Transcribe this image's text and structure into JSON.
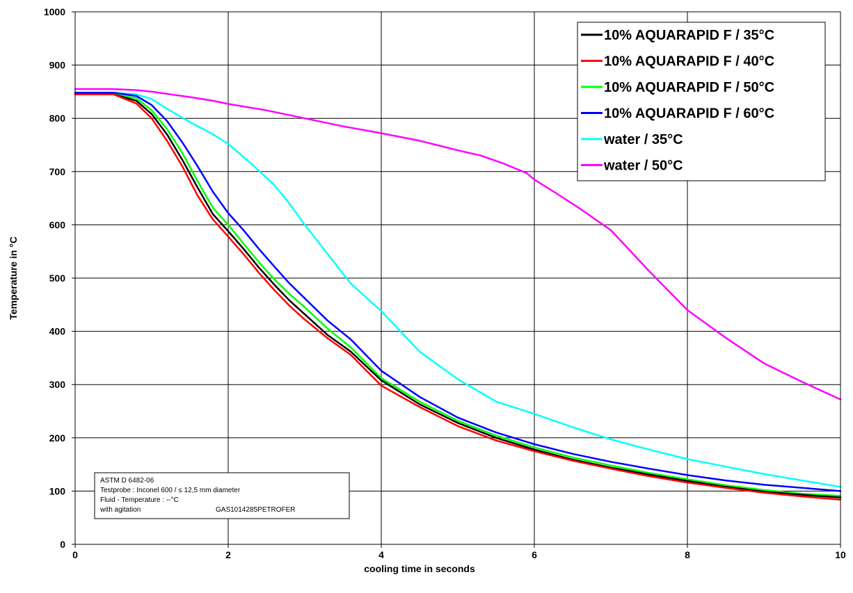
{
  "chart_data": {
    "type": "line",
    "xlabel": "cooling time in seconds",
    "ylabel": "Temperature in °C",
    "xlim": [
      0,
      10
    ],
    "ylim": [
      0,
      1000
    ],
    "xticks": [
      0,
      2,
      4,
      6,
      8,
      10
    ],
    "yticks": [
      0,
      100,
      200,
      300,
      400,
      500,
      600,
      700,
      800,
      900,
      1000
    ],
    "grid": true,
    "legend_position": "top-right",
    "series": [
      {
        "name": "10% AQUARAPID F / 35°C",
        "color": "#000000",
        "x": [
          0,
          0.5,
          0.8,
          1.0,
          1.2,
          1.4,
          1.6,
          1.8,
          2.0,
          2.2,
          2.4,
          2.6,
          2.8,
          3.0,
          3.3,
          3.6,
          4.0,
          4.5,
          5.0,
          5.5,
          6.0,
          6.5,
          7.0,
          7.5,
          8.0,
          8.5,
          9.0,
          9.5,
          10.0
        ],
        "y": [
          845,
          845,
          833,
          808,
          770,
          722,
          670,
          620,
          588,
          555,
          520,
          488,
          458,
          432,
          393,
          362,
          308,
          263,
          228,
          200,
          178,
          159,
          144,
          131,
          119,
          108,
          99,
          93,
          88
        ]
      },
      {
        "name": "10% AQUARAPID F / 40°C",
        "color": "#ff0000",
        "x": [
          0,
          0.5,
          0.8,
          1.0,
          1.2,
          1.4,
          1.6,
          1.8,
          2.0,
          2.2,
          2.4,
          2.6,
          2.8,
          3.0,
          3.3,
          3.6,
          4.0,
          4.5,
          5.0,
          5.5,
          6.0,
          6.5,
          7.0,
          7.5,
          8.0,
          8.5,
          9.0,
          9.5,
          10.0
        ],
        "y": [
          845,
          845,
          828,
          800,
          758,
          710,
          655,
          610,
          578,
          545,
          510,
          478,
          448,
          422,
          387,
          356,
          298,
          258,
          222,
          195,
          175,
          157,
          142,
          128,
          116,
          106,
          97,
          90,
          84
        ]
      },
      {
        "name": "10% AQUARAPID F / 50°C",
        "color": "#00ff00",
        "x": [
          0,
          0.5,
          0.8,
          1.0,
          1.2,
          1.4,
          1.6,
          1.8,
          2.0,
          2.2,
          2.4,
          2.6,
          2.8,
          3.0,
          3.3,
          3.6,
          4.0,
          4.5,
          5.0,
          5.5,
          6.0,
          6.5,
          7.0,
          7.5,
          8.0,
          8.5,
          9.0,
          9.5,
          10.0
        ],
        "y": [
          845,
          845,
          838,
          815,
          780,
          735,
          682,
          632,
          600,
          565,
          530,
          498,
          470,
          445,
          405,
          370,
          312,
          268,
          232,
          204,
          182,
          163,
          148,
          134,
          122,
          111,
          102,
          95,
          91
        ]
      },
      {
        "name": "10% AQUARAPID F / 60°C",
        "color": "#0000ff",
        "x": [
          0,
          0.5,
          0.8,
          1.0,
          1.2,
          1.4,
          1.6,
          1.8,
          2.0,
          2.2,
          2.4,
          2.6,
          2.8,
          3.0,
          3.3,
          3.6,
          4.0,
          4.5,
          5.0,
          5.5,
          6.0,
          6.5,
          7.0,
          7.5,
          8.0,
          8.5,
          9.0,
          9.5,
          10.0
        ],
        "y": [
          848,
          848,
          842,
          825,
          795,
          755,
          710,
          662,
          622,
          590,
          555,
          522,
          490,
          462,
          420,
          385,
          326,
          277,
          238,
          210,
          188,
          170,
          155,
          142,
          130,
          120,
          112,
          106,
          100
        ]
      },
      {
        "name": "water / 35°C",
        "color": "#00ffff",
        "x": [
          0,
          0.5,
          0.8,
          1.0,
          1.2,
          1.5,
          1.8,
          2.0,
          2.3,
          2.6,
          2.8,
          3.0,
          3.3,
          3.6,
          4.0,
          4.5,
          5.0,
          5.5,
          6.0,
          6.5,
          7.0,
          7.5,
          8.0,
          8.5,
          9.0,
          9.5,
          10.0
        ],
        "y": [
          848,
          848,
          845,
          836,
          818,
          793,
          770,
          752,
          715,
          675,
          640,
          600,
          545,
          490,
          438,
          362,
          310,
          268,
          245,
          220,
          197,
          178,
          160,
          146,
          132,
          120,
          108
        ]
      },
      {
        "name": "water / 50°C",
        "color": "#ff00ff",
        "x": [
          0,
          0.5,
          0.8,
          1.0,
          1.2,
          1.5,
          1.8,
          2.0,
          2.5,
          3.0,
          3.5,
          4.0,
          4.5,
          5.0,
          5.3,
          5.6,
          5.9,
          6.0,
          6.3,
          6.6,
          7.0,
          7.5,
          8.0,
          8.5,
          9.0,
          9.5,
          10.0
        ],
        "y": [
          855,
          855,
          853,
          850,
          846,
          840,
          833,
          827,
          815,
          800,
          785,
          772,
          758,
          740,
          730,
          715,
          697,
          685,
          658,
          630,
          590,
          513,
          440,
          388,
          340,
          305,
          272
        ]
      }
    ],
    "annotation": [
      "ASTM D 6482-06",
      "Testprobe : Inconel 600 / ≤ 12,5 mm diameter",
      "Fluid - Temperature : --°C",
      "with agitation",
      "GAS1014285PETROFER"
    ]
  }
}
